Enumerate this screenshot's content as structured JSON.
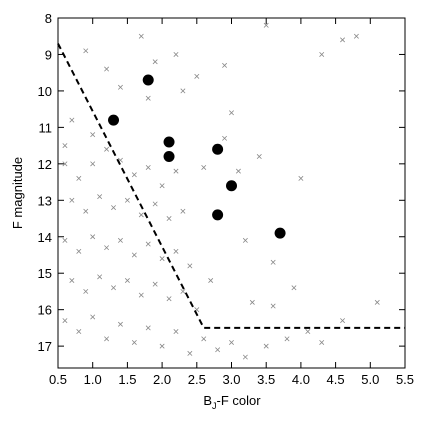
{
  "chart_data": {
    "type": "scatter",
    "ylabel": "F magnitude",
    "xlabel_parts": [
      "B",
      "J",
      "-F color"
    ],
    "xlim": [
      0.5,
      5.5
    ],
    "ylim": [
      17.6,
      8
    ],
    "xticks": [
      0.5,
      {
        "value": 1,
        "label": "1.0"
      },
      1.5,
      {
        "value": 2,
        "label": "2.0"
      },
      2.5,
      {
        "value": 3,
        "label": "3.0"
      },
      3.5,
      {
        "value": 4,
        "label": "4.0"
      },
      4.5,
      {
        "value": 5,
        "label": "5.0"
      },
      5.5
    ],
    "yticks": [
      8,
      9,
      10,
      11,
      12,
      13,
      14,
      15,
      16,
      17
    ],
    "series": [
      {
        "marker": "cross",
        "color": "#888888",
        "x": [
          0.9,
          1.2,
          1.4,
          1.7,
          1.9,
          2.2,
          2.5,
          2.9,
          3.5,
          4.6,
          4.8,
          4.3,
          1.8,
          2.3,
          0.7,
          1.0,
          0.6,
          0.6,
          0.8,
          1.0,
          1.2,
          1.4,
          1.6,
          1.8,
          2.0,
          2.2,
          0.7,
          0.9,
          1.1,
          1.3,
          1.5,
          1.7,
          1.9,
          2.1,
          2.3,
          0.6,
          0.8,
          1.0,
          1.2,
          1.4,
          1.6,
          1.8,
          2.0,
          2.2,
          2.4,
          0.7,
          0.9,
          1.1,
          1.3,
          1.5,
          1.7,
          1.9,
          2.1,
          2.3,
          2.5,
          0.6,
          0.8,
          1.0,
          1.2,
          1.4,
          1.6,
          1.8,
          2.0,
          2.2,
          2.4,
          2.6,
          2.8,
          3.0,
          3.2,
          3.5,
          3.8,
          4.1,
          4.3,
          2.6,
          2.9,
          3.1,
          3.4,
          3.2,
          3.6,
          3.9,
          3.3,
          2.7,
          3.6,
          4.6,
          5.1,
          4.0,
          3.0
        ],
        "y": [
          8.9,
          9.4,
          9.9,
          8.5,
          9.2,
          9.0,
          9.6,
          9.3,
          8.2,
          8.6,
          8.5,
          9.0,
          10.2,
          10.0,
          10.8,
          11.2,
          11.5,
          12.0,
          12.4,
          12.0,
          11.6,
          11.9,
          12.3,
          12.1,
          12.6,
          12.2,
          13.0,
          13.3,
          12.9,
          13.2,
          13.0,
          13.4,
          13.1,
          13.5,
          13.3,
          14.1,
          14.4,
          14.0,
          14.3,
          14.1,
          14.5,
          14.2,
          14.6,
          14.4,
          14.8,
          15.2,
          15.5,
          15.1,
          15.4,
          15.2,
          15.6,
          15.3,
          15.7,
          15.5,
          16.0,
          16.3,
          16.6,
          16.2,
          16.8,
          16.4,
          16.9,
          16.5,
          17.0,
          16.6,
          17.2,
          16.8,
          17.1,
          16.9,
          17.3,
          17.0,
          16.8,
          16.6,
          16.9,
          12.1,
          11.3,
          12.2,
          11.8,
          14.1,
          14.7,
          15.4,
          15.8,
          15.2,
          15.9,
          16.3,
          15.8,
          12.4,
          10.6
        ]
      },
      {
        "marker": "circle",
        "color": "#000000",
        "x": [
          1.3,
          1.8,
          2.1,
          2.1,
          2.8,
          3.0,
          2.8,
          3.7
        ],
        "y": [
          10.8,
          9.7,
          11.4,
          11.8,
          11.6,
          12.6,
          13.4,
          13.9
        ]
      },
      {
        "marker": "dashed-line",
        "color": "#000000",
        "x": [
          0.5,
          2.6,
          5.5
        ],
        "y": [
          8.7,
          16.5,
          16.5
        ]
      }
    ]
  }
}
